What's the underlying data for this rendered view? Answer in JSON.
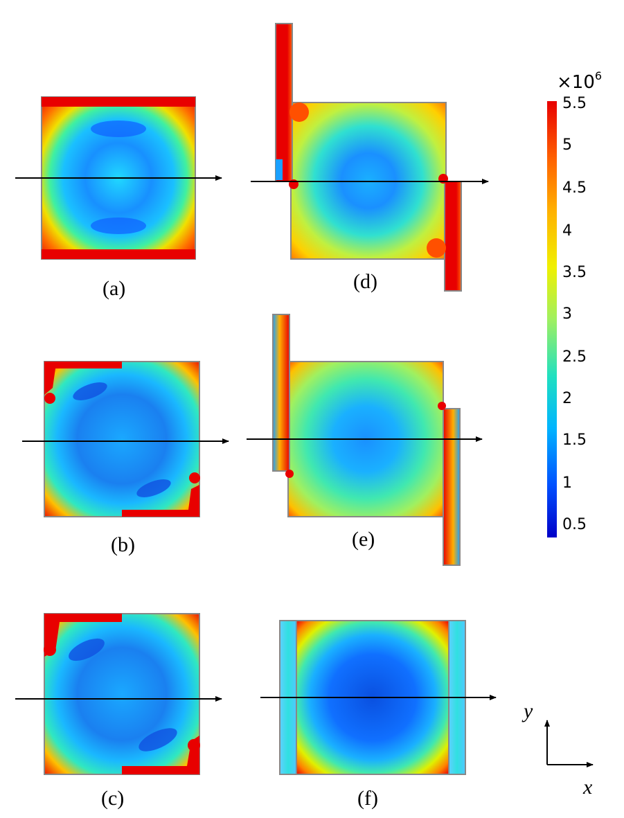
{
  "panels": [
    {
      "id": "a",
      "label": "(a)"
    },
    {
      "id": "b",
      "label": "(b)"
    },
    {
      "id": "c",
      "label": "(c)"
    },
    {
      "id": "d",
      "label": "(d)"
    },
    {
      "id": "e",
      "label": "(e)"
    },
    {
      "id": "f",
      "label": "(f)"
    }
  ],
  "colorbar": {
    "multiplier_base": "×10",
    "multiplier_exp": "6",
    "ticks": [
      "5.5",
      "5",
      "4.5",
      "4",
      "3.5",
      "3",
      "2.5",
      "2",
      "1.5",
      "1",
      "0.5"
    ],
    "colors": [
      "#0000c8",
      "#0050ff",
      "#00b4ff",
      "#20e0c0",
      "#a0f060",
      "#f0f000",
      "#ffb000",
      "#ff6000",
      "#e80000"
    ]
  },
  "axes": {
    "x": "x",
    "y": "y"
  }
}
